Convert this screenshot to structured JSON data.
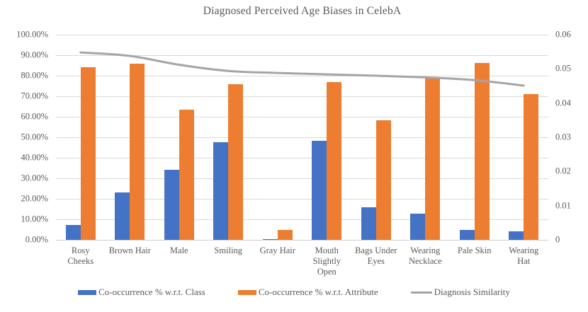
{
  "chart_data": {
    "type": "combo",
    "title": "Diagnosed Perceived Age Biases in CelebA",
    "categories": [
      "Rosy Cheeks",
      "Brown Hair",
      "Male",
      "Smiling",
      "Gray Hair",
      "Mouth Slightly Open",
      "Bags Under Eyes",
      "Wearing Necklace",
      "Pale Skin",
      "Wearing Hat"
    ],
    "series": [
      {
        "name": "Co-occurrence % w.r.t. Class",
        "type": "bar",
        "axis": "left",
        "color": "#4472C4",
        "values_percent": [
          7.1,
          23.0,
          34.1,
          47.6,
          0.4,
          48.3,
          15.8,
          12.8,
          4.7,
          4.3
        ]
      },
      {
        "name": "Co-occurrence % w.r.t. Attribute",
        "type": "bar",
        "axis": "left",
        "color": "#ED7D31",
        "values_percent": [
          84.3,
          86.0,
          63.3,
          75.9,
          4.7,
          77.0,
          58.3,
          78.8,
          86.2,
          70.9
        ]
      },
      {
        "name": "Diagnosis Similarity",
        "type": "line",
        "axis": "right",
        "color": "#A5A5A5",
        "values": [
          0.0548,
          0.0538,
          0.0512,
          0.0494,
          0.0488,
          0.0484,
          0.048,
          0.0475,
          0.0467,
          0.0451
        ]
      }
    ],
    "left_axis": {
      "min_percent": 0,
      "max_percent": 100,
      "tick_labels": [
        "0.00%",
        "10.00%",
        "20.00%",
        "30.00%",
        "40.00%",
        "50.00%",
        "60.00%",
        "70.00%",
        "80.00%",
        "90.00%",
        "100.00%"
      ]
    },
    "right_axis": {
      "min": 0,
      "max": 0.06,
      "tick_labels": [
        "0",
        "0.01",
        "0.02",
        "0.03",
        "0.04",
        "0.05",
        "0.06"
      ],
      "tick_values": [
        0,
        0.01,
        0.02,
        0.03,
        0.04,
        0.05,
        0.06
      ]
    },
    "grid": "horizontal",
    "legend_position": "bottom",
    "colors": {
      "text": "#595959",
      "gridline": "#D9D9D9",
      "background": "#FFFFFF"
    }
  }
}
